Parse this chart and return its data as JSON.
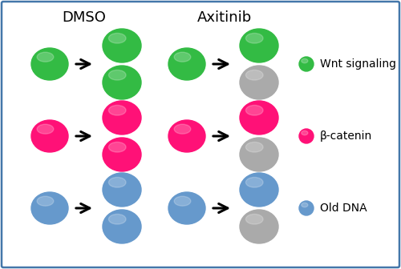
{
  "title_dmso": "DMSO",
  "title_axitinib": "Axitinib",
  "green_color": "#33bb44",
  "pink_color": "#ff1177",
  "blue_color": "#6699cc",
  "gray_color": "#aaaaaa",
  "legend_labels": [
    "Wnt signaling",
    "β-catenin",
    "Old DNA"
  ],
  "bg_color": "#ffffff",
  "border_color": "#4477aa",
  "title_fontsize": 13,
  "legend_fontsize": 10,
  "figsize": [
    5.0,
    3.36
  ],
  "dpi": 100,
  "colors": [
    "#33bb44",
    "#ff1177",
    "#6699cc"
  ]
}
